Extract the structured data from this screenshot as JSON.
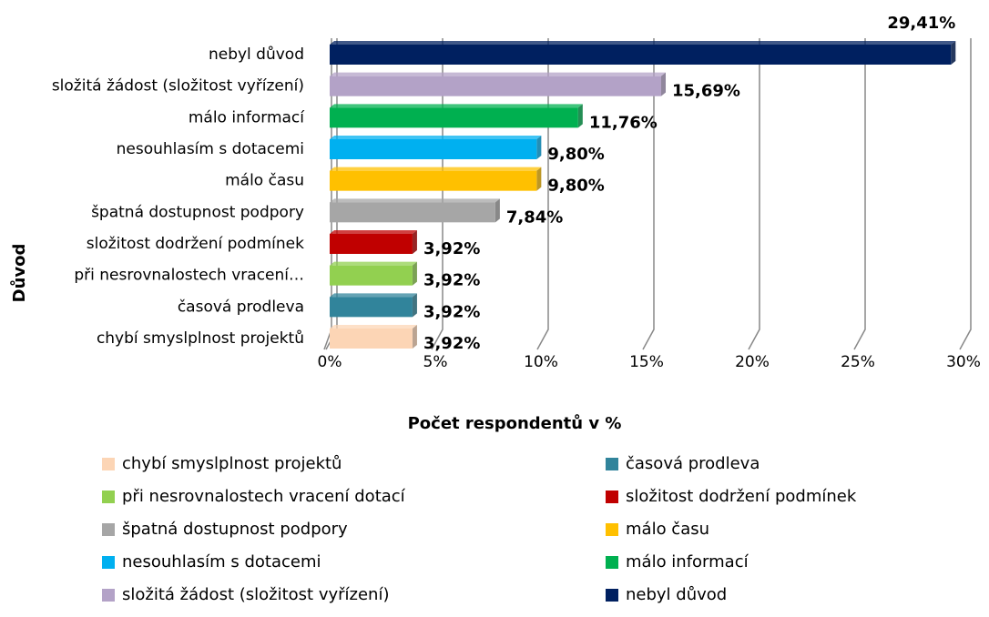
{
  "chart_data": {
    "type": "bar3d_horizontal",
    "x_label": "Počet respondentů v %",
    "y_label": "Důvod",
    "categories": [
      "chybí smyslplnost projektů",
      "časová prodleva",
      "při nesrovnalostech vracení…",
      "složitost dodržení podmínek",
      "špatná dostupnost podpory",
      "málo času",
      "nesouhlasím s dotacemi ",
      "málo informací",
      "složitá žádost (složitost vyřízení)",
      "nebyl důvod"
    ],
    "legend": [
      "chybí smyslplnost projektů",
      "časová prodleva",
      "při nesrovnalostech vracení dotací",
      "složitost dodržení podmínek",
      "špatná dostupnost podpory",
      "málo času",
      "nesouhlasím s dotacemi",
      "málo informací",
      "složitá žádost (složitost vyřízení)",
      "nebyl důvod"
    ],
    "colors": [
      "#fcd5b5",
      "#31849b",
      "#92d050",
      "#c00000",
      "#a6a6a6",
      "#ffc000",
      "#00b0f0",
      "#00b050",
      "#b3a2c7",
      "#002060"
    ],
    "values": [
      3.92,
      3.92,
      3.92,
      3.92,
      7.84,
      9.8,
      9.8,
      11.76,
      15.69,
      29.41
    ],
    "value_labels": [
      "3,92%",
      "3,92%",
      "3,92%",
      "3,92%",
      "7,84%",
      "9,80%",
      "9,80%",
      "11,76%",
      "15,69%",
      "29,41%"
    ],
    "xlim": [
      0,
      30
    ],
    "xticks": [
      {
        "value": 0,
        "label": "0%"
      },
      {
        "value": 5,
        "label": "5%"
      },
      {
        "value": 10,
        "label": "10%"
      },
      {
        "value": 15,
        "label": "15%"
      },
      {
        "value": 20,
        "label": "20%"
      },
      {
        "value": 25,
        "label": "25%"
      },
      {
        "value": 30,
        "label": "30%"
      }
    ],
    "grid": true
  }
}
